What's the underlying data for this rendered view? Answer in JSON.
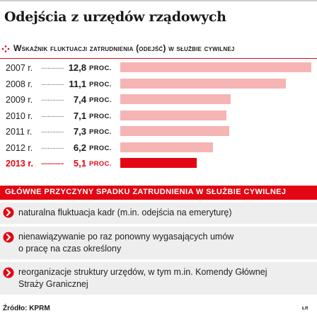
{
  "title": "Odejścia z urzędów rządowych",
  "chart_data": {
    "type": "bar",
    "orientation": "horizontal",
    "title": "Wskaźnik fluktuacji zatrudnienia (odejść) w służbie cywilnej",
    "categories": [
      "2007 r.",
      "2008 r.",
      "2009 r.",
      "2010 r.",
      "2011 r.",
      "2012 r.",
      "2013 r."
    ],
    "values": [
      12.8,
      11.1,
      7.4,
      7.1,
      7.3,
      6.2,
      5.1
    ],
    "value_labels": [
      "12,8",
      "11,1",
      "7,4",
      "7,1",
      "7,3",
      "6,2",
      "5,1"
    ],
    "unit": "PROC.",
    "dots": "..............",
    "highlight_index": 6,
    "colors": {
      "bar": "#f6b4b4",
      "highlight_bar": "#e30613",
      "accent": "#e30613"
    }
  },
  "reasons": {
    "title": "GŁÓWNE PRZYCZYNY SPADKU ZATRUDNIENIA W SŁUŻBIE CYWILNEJ",
    "items": [
      {
        "text": [
          "naturalna fluktuacja kadr (m.in. odejścia na emeryturę)"
        ]
      },
      {
        "text": [
          "nienawiązywanie po raz ponowny wygasających umów",
          "o pracę na czas określony"
        ]
      },
      {
        "text": [
          "reorganizacje struktury urzędów, w tym m.in. Komendy Głównej",
          "Straży Granicznej"
        ]
      }
    ],
    "icon": "right-arrow-circle-icon"
  },
  "source": "Źródło: KPRM",
  "credit": "ŁR"
}
